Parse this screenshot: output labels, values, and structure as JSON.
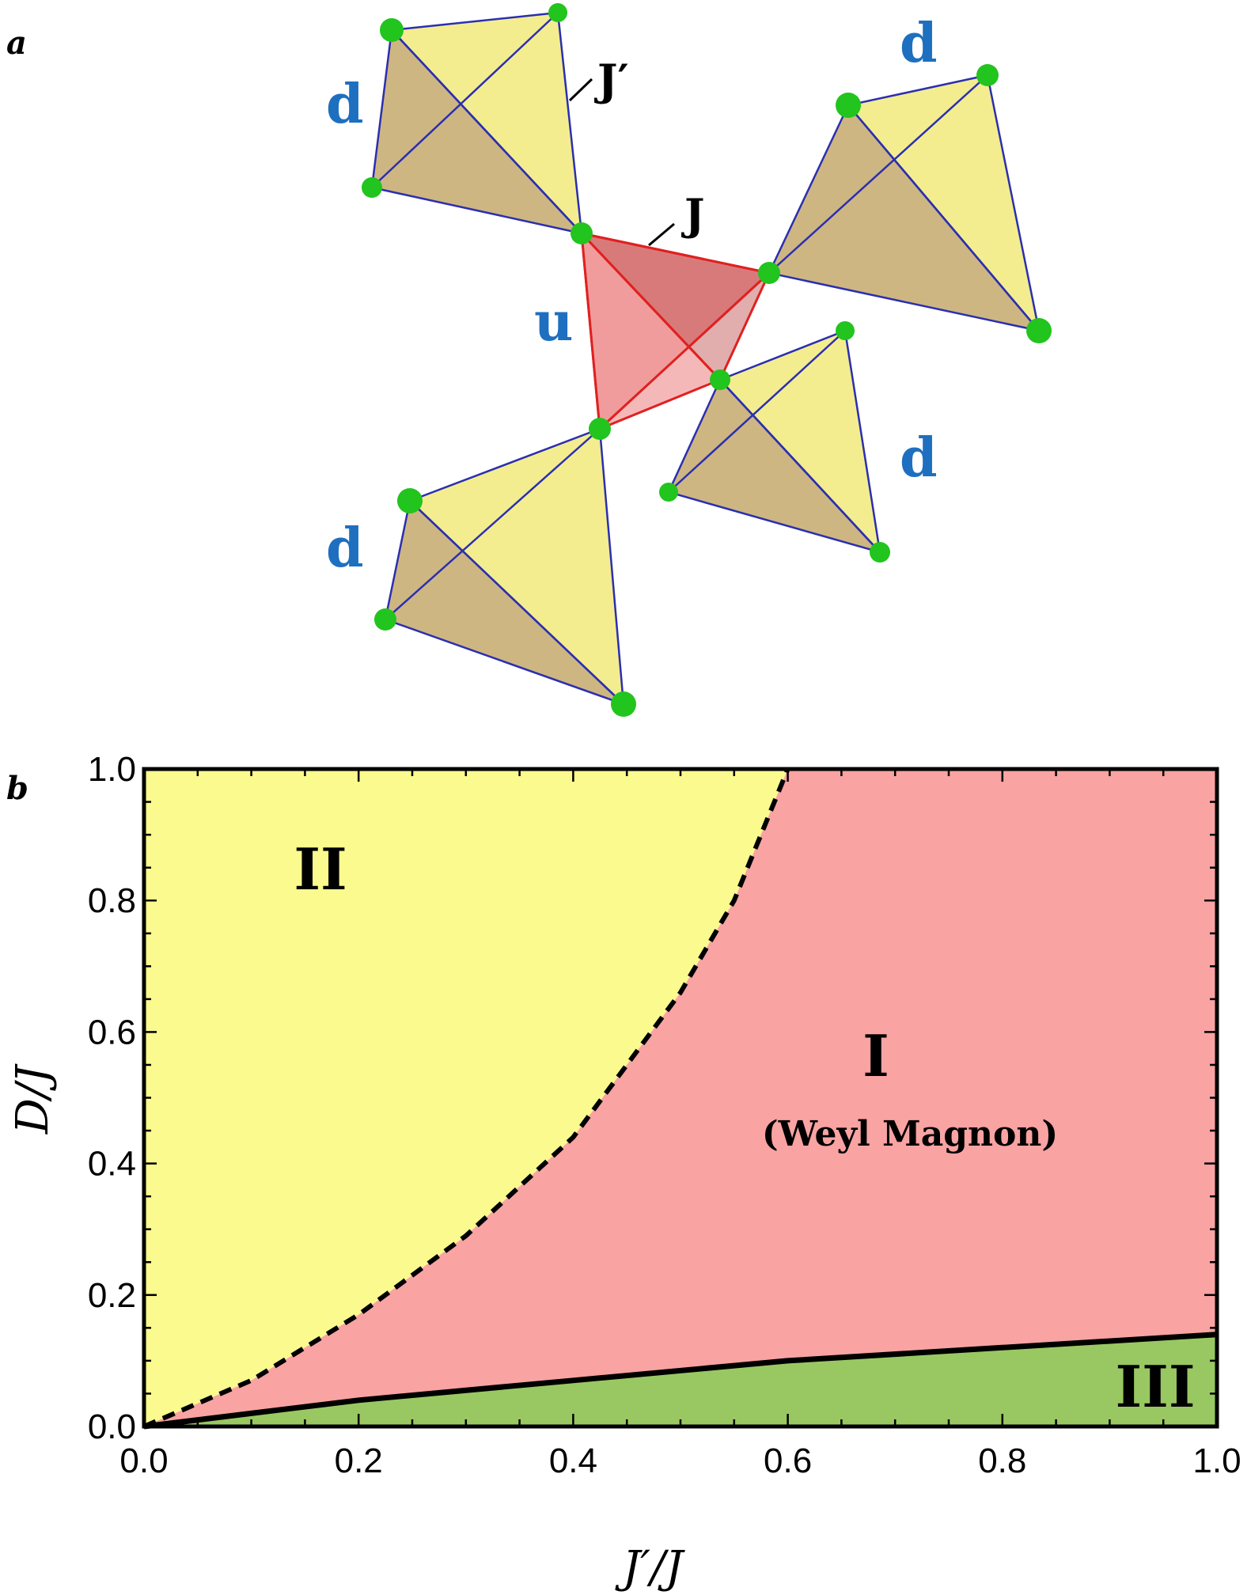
{
  "panel_a": {
    "label": "a",
    "up_label": "u",
    "down_label": "d",
    "bond_J": "J",
    "bond_Jprime": "J′",
    "colors": {
      "up_fill": "#e98383",
      "up_edge": "#e02020",
      "down_fill_light": "#f2ec8a",
      "down_fill_dark": "#c9ae74",
      "down_edge": "#2b2fb0",
      "site": "#22c41e"
    }
  },
  "panel_b": {
    "label": "b"
  },
  "chart_data": {
    "type": "area",
    "xlabel": "J′/J",
    "ylabel": "D/J",
    "xlim": [
      0,
      1
    ],
    "ylim": [
      0,
      1
    ],
    "xticks": [
      "0.0",
      "0.2",
      "0.4",
      "0.6",
      "0.8",
      "1.0"
    ],
    "yticks": [
      "0.0",
      "0.2",
      "0.4",
      "0.6",
      "0.8",
      "1.0"
    ],
    "grid": false,
    "boundaries": [
      {
        "style": "dashed",
        "x": [
          0.0,
          0.1,
          0.2,
          0.3,
          0.4,
          0.5,
          0.55,
          0.6
        ],
        "y": [
          0.0,
          0.07,
          0.17,
          0.29,
          0.44,
          0.66,
          0.8,
          1.0
        ]
      },
      {
        "style": "solid",
        "x": [
          0.0,
          0.1,
          0.2,
          0.4,
          0.6,
          0.8,
          1.0
        ],
        "y": [
          0.0,
          0.02,
          0.04,
          0.07,
          0.1,
          0.12,
          0.14
        ]
      }
    ],
    "regions": [
      {
        "label": "I",
        "sublabel": "(Weyl Magnon)",
        "color": "#f9a3a3"
      },
      {
        "label": "II",
        "color": "#fafa8e"
      },
      {
        "label": "III",
        "color": "#99c862"
      }
    ]
  }
}
